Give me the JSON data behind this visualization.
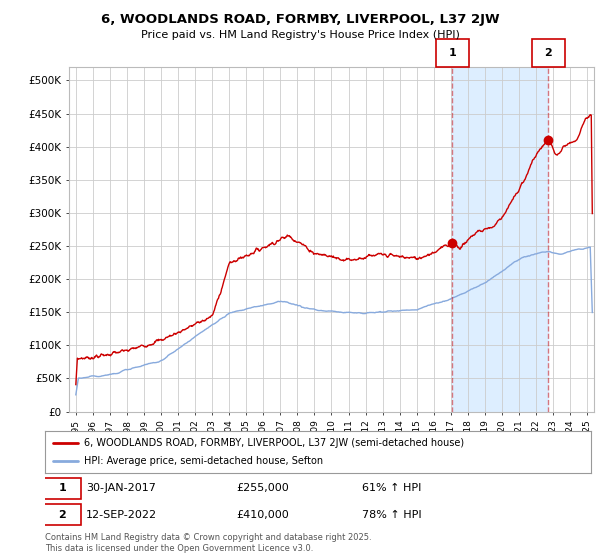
{
  "title": "6, WOODLANDS ROAD, FORMBY, LIVERPOOL, L37 2JW",
  "subtitle": "Price paid vs. HM Land Registry's House Price Index (HPI)",
  "ylabel_ticks": [
    "£0",
    "£50K",
    "£100K",
    "£150K",
    "£200K",
    "£250K",
    "£300K",
    "£350K",
    "£400K",
    "£450K",
    "£500K"
  ],
  "ytick_values": [
    0,
    50000,
    100000,
    150000,
    200000,
    250000,
    300000,
    350000,
    400000,
    450000,
    500000
  ],
  "ylim": [
    0,
    520000
  ],
  "xlim_start": 1994.6,
  "xlim_end": 2025.4,
  "red_line_color": "#cc0000",
  "blue_line_color": "#88aadd",
  "shade_color": "#ddeeff",
  "marker1_date": 2017.08,
  "marker1_value": 255000,
  "marker2_date": 2022.71,
  "marker2_value": 410000,
  "marker1_label": "1",
  "marker2_label": "2",
  "vline_color": "#cc0000",
  "vline_alpha": 0.5,
  "legend_red_label": "6, WOODLANDS ROAD, FORMBY, LIVERPOOL, L37 2JW (semi-detached house)",
  "legend_blue_label": "HPI: Average price, semi-detached house, Sefton",
  "annotation1_num": "1",
  "annotation1_date": "30-JAN-2017",
  "annotation1_price": "£255,000",
  "annotation1_hpi": "61% ↑ HPI",
  "annotation2_num": "2",
  "annotation2_date": "12-SEP-2022",
  "annotation2_price": "£410,000",
  "annotation2_hpi": "78% ↑ HPI",
  "footer": "Contains HM Land Registry data © Crown copyright and database right 2025.\nThis data is licensed under the Open Government Licence v3.0.",
  "background_color": "#ffffff",
  "grid_color": "#cccccc"
}
